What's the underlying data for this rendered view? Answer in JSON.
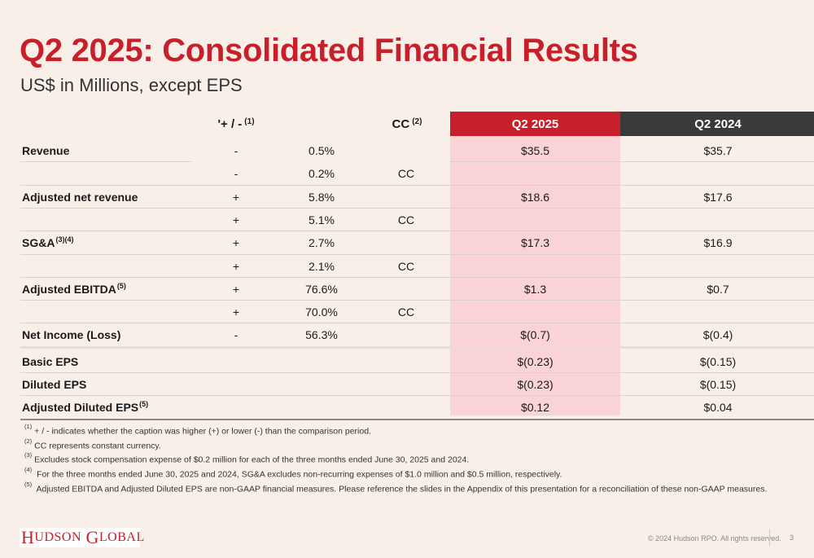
{
  "title": "Q2 2025: Consolidated Financial Results",
  "subtitle": "US$ in Millions, except EPS",
  "headers": {
    "change": "'+ / -",
    "change_note": "(1)",
    "cc": "CC",
    "cc_note": "(2)",
    "q2_2025": "Q2 2025",
    "q2_2024": "Q2 2024"
  },
  "rows": [
    {
      "label": "Revenue",
      "note": "",
      "sign": "-",
      "pct": "0.5%",
      "cc": "",
      "q2_2025": "$35.5",
      "q2_2024": "$35.7"
    },
    {
      "label": "",
      "note": "",
      "sign": "-",
      "pct": "0.2%",
      "cc": "CC",
      "q2_2025": "",
      "q2_2024": ""
    },
    {
      "label": "Adjusted net revenue",
      "note": "",
      "sign": "+",
      "pct": "5.8%",
      "cc": "",
      "q2_2025": "$18.6",
      "q2_2024": "$17.6"
    },
    {
      "label": "",
      "note": "",
      "sign": "+",
      "pct": "5.1%",
      "cc": "CC",
      "q2_2025": "",
      "q2_2024": ""
    },
    {
      "label": "SG&A",
      "note": "(3)(4)",
      "sign": "+",
      "pct": "2.7%",
      "cc": "",
      "q2_2025": "$17.3",
      "q2_2024": "$16.9"
    },
    {
      "label": "",
      "note": "",
      "sign": "+",
      "pct": "2.1%",
      "cc": "CC",
      "q2_2025": "",
      "q2_2024": ""
    },
    {
      "label": "Adjusted EBITDA",
      "note": "(5)",
      "sign": "+",
      "pct": "76.6%",
      "cc": "",
      "q2_2025": "$1.3",
      "q2_2024": "$0.7"
    },
    {
      "label": "",
      "note": "",
      "sign": "+",
      "pct": "70.0%",
      "cc": "CC",
      "q2_2025": "",
      "q2_2024": ""
    },
    {
      "label": "Net Income (Loss)",
      "note": "",
      "sign": "-",
      "pct": "56.3%",
      "cc": "",
      "q2_2025": "$(0.7)",
      "q2_2024": "$(0.4)"
    },
    {
      "label": "Basic EPS",
      "note": "",
      "sign": "",
      "pct": "",
      "cc": "",
      "q2_2025": "$(0.23)",
      "q2_2024": "$(0.15)"
    },
    {
      "label": "Diluted EPS",
      "note": "",
      "sign": "",
      "pct": "",
      "cc": "",
      "q2_2025": "$(0.23)",
      "q2_2024": "$(0.15)"
    },
    {
      "label": "Adjusted Diluted EPS",
      "note": "(5)",
      "sign": "",
      "pct": "",
      "cc": "",
      "q2_2025": "$0.12",
      "q2_2024": "$0.04"
    }
  ],
  "footnotes": [
    {
      "mark": "(1)",
      "text": "+ / - indicates whether the caption was higher (+) or lower (-) than the comparison period."
    },
    {
      "mark": "(2)",
      "text": "CC represents constant currency."
    },
    {
      "mark": "(3)",
      "text": "Excludes stock compensation expense of $0.2 million for each of the three months ended June 30, 2025 and 2024."
    },
    {
      "mark": "(4)",
      "text": " For the three months ended June 30, 2025 and 2024, SG&A excludes non-recurring expenses of $1.0 million and $0.5 million, respectively."
    },
    {
      "mark": "(5)",
      "text": " Adjusted EBITDA and Adjusted Diluted EPS are non-GAAP financial measures. Please reference the slides in the Appendix of this presentation for a reconciliation of these non-GAAP measures."
    }
  ],
  "logo": {
    "h": "H",
    "udson": "UDSON",
    "g": "G",
    "lobal": "LOBAL"
  },
  "copyright": "© 2024 Hudson RPO. All rights reserved.",
  "page_number": "3",
  "colors": {
    "brand_red": "#c8202a",
    "dark_header": "#3a3a3a",
    "highlight_pink": "#f9d3d5",
    "background": "#f9efe9"
  }
}
